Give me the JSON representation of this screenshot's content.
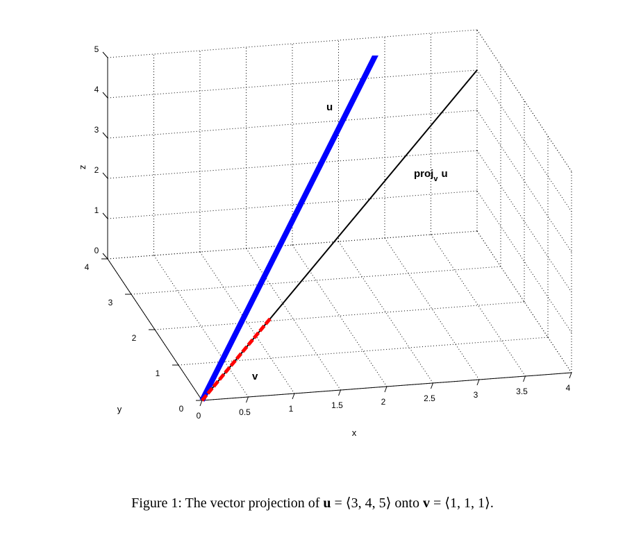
{
  "chart_data": {
    "type": "line",
    "projection": "3d",
    "grid": true,
    "xlabel": "x",
    "ylabel": "y",
    "zlabel": "z",
    "xlim": [
      0,
      4
    ],
    "ylim": [
      0,
      4
    ],
    "zlim": [
      0,
      5
    ],
    "x_ticks": [
      "0",
      "0.5",
      "1",
      "1.5",
      "2",
      "2.5",
      "3",
      "3.5",
      "4"
    ],
    "y_ticks": [
      "0",
      "1",
      "2",
      "3",
      "4"
    ],
    "z_ticks": [
      "0",
      "1",
      "2",
      "3",
      "4",
      "5"
    ],
    "series": [
      {
        "name": "u",
        "color": "#0000ff",
        "points": [
          [
            0,
            0,
            0
          ],
          [
            3,
            4,
            5
          ]
        ]
      },
      {
        "name": "proj",
        "subscript": "v",
        "suffix": "u",
        "color": "#000000",
        "points": [
          [
            0,
            0,
            0
          ],
          [
            4,
            4,
            4
          ]
        ]
      },
      {
        "name": "v",
        "color": "#ff0000",
        "points": [
          [
            0,
            0,
            0
          ],
          [
            1,
            1,
            1
          ]
        ]
      }
    ]
  },
  "caption": {
    "prefix": "Figure 1: The vector projection of",
    "u_symbol": "u",
    "u_value": "= ⟨3, 4, 5⟩",
    "middle": "onto",
    "v_symbol": "v",
    "v_value": "= ⟨1, 1, 1⟩."
  }
}
